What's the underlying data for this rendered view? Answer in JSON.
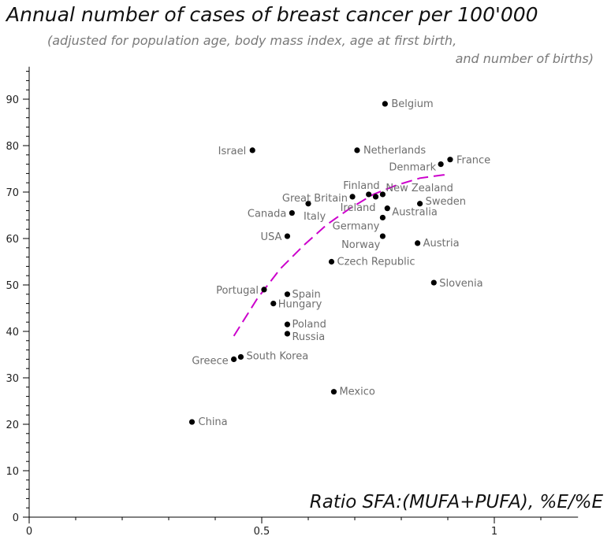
{
  "chart_data": {
    "type": "scatter",
    "title": "Annual number of cases of breast cancer per 100'000",
    "subtitle_line1": "(adjusted for population age, body mass index, age at first birth,",
    "subtitle_line2": "and number of births)",
    "xlabel": "Ratio SFA:(MUFA+PUFA), %E/%E",
    "ylabel": "",
    "xlim": [
      0,
      1.18
    ],
    "ylim": [
      0,
      97
    ],
    "x_major_ticks": [
      0,
      0.5,
      1
    ],
    "x_major_tick_labels": [
      "0",
      "0.5",
      "1"
    ],
    "y_major_ticks": [
      10,
      20,
      30,
      40,
      50,
      60,
      70,
      80,
      90
    ],
    "y_major_tick_labels": [
      "10",
      "20",
      "30",
      "40",
      "50",
      "60",
      "70",
      "80",
      "90"
    ],
    "grid": false,
    "marker_color": "#000000",
    "trend_color": "#cc00cc",
    "points": [
      {
        "label": "Belgium",
        "x": 0.765,
        "y": 89
      },
      {
        "label": "Israel",
        "x": 0.48,
        "y": 79
      },
      {
        "label": "Netherlands",
        "x": 0.705,
        "y": 79
      },
      {
        "label": "France",
        "x": 0.905,
        "y": 77
      },
      {
        "label": "Denmark",
        "x": 0.885,
        "y": 76
      },
      {
        "label": "Finland",
        "x": 0.73,
        "y": 69.5
      },
      {
        "label": "New Zealand",
        "x": 0.76,
        "y": 69.5
      },
      {
        "label": "Great Britain",
        "x": 0.695,
        "y": 69
      },
      {
        "label": "Ireland",
        "x": 0.745,
        "y": 69
      },
      {
        "label": "Sweden",
        "x": 0.84,
        "y": 67.5
      },
      {
        "label": "Italy",
        "x": 0.6,
        "y": 67.5
      },
      {
        "label": "Australia",
        "x": 0.77,
        "y": 66.5
      },
      {
        "label": "Canada",
        "x": 0.565,
        "y": 65.5
      },
      {
        "label": "Germany",
        "x": 0.76,
        "y": 64.5
      },
      {
        "label": "USA",
        "x": 0.555,
        "y": 60.5
      },
      {
        "label": "Norway",
        "x": 0.76,
        "y": 60.5
      },
      {
        "label": "Austria",
        "x": 0.835,
        "y": 59
      },
      {
        "label": "Czech Republic",
        "x": 0.65,
        "y": 55
      },
      {
        "label": "Slovenia",
        "x": 0.87,
        "y": 50.5
      },
      {
        "label": "Portugal",
        "x": 0.505,
        "y": 49
      },
      {
        "label": "Spain",
        "x": 0.555,
        "y": 48
      },
      {
        "label": "Hungary",
        "x": 0.525,
        "y": 46
      },
      {
        "label": "Poland",
        "x": 0.555,
        "y": 41.5
      },
      {
        "label": "Russia",
        "x": 0.555,
        "y": 39.5
      },
      {
        "label": "South Korea",
        "x": 0.455,
        "y": 34.5
      },
      {
        "label": "Greece",
        "x": 0.44,
        "y": 34
      },
      {
        "label": "Mexico",
        "x": 0.655,
        "y": 27
      },
      {
        "label": "China",
        "x": 0.35,
        "y": 20.5
      }
    ],
    "trend_line": {
      "style": "dashed",
      "x": [
        0.44,
        0.49,
        0.54,
        0.59,
        0.64,
        0.69,
        0.74,
        0.79,
        0.84,
        0.89,
        0.9
      ],
      "y": [
        39,
        47,
        53.5,
        58.5,
        63,
        66.5,
        69.5,
        71.5,
        73,
        73.7,
        73.7
      ]
    }
  }
}
